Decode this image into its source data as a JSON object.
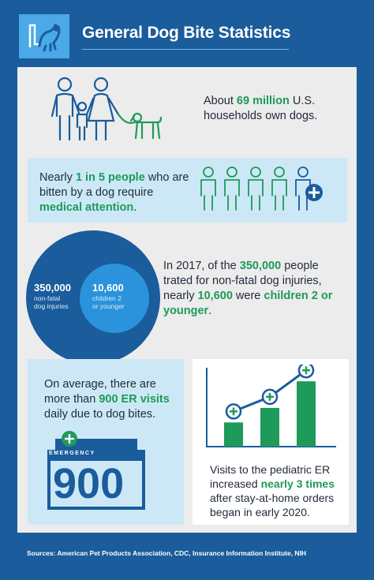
{
  "header": {
    "title": "General Dog Bite Statistics",
    "logo_icon": "dog-logo-icon"
  },
  "stat1": {
    "prefix": "About ",
    "highlight": "69 million",
    "suffix": " U.S. households own dogs."
  },
  "stat2": {
    "prefix": "Nearly ",
    "highlight1": "1 in 5 people",
    "middle": " who are bitten by a dog require ",
    "highlight2": "medical attention",
    "suffix": "."
  },
  "circles": {
    "big_number": "350,000",
    "big_label_1": "non-fatal",
    "big_label_2": "dog injuries",
    "small_number": "10,600",
    "small_label_1": "children 2",
    "small_label_2": "or younger"
  },
  "stat3": {
    "p1": "In 2017, of the ",
    "h1": "350,000",
    "p2": " people trated for non-fatal dog injuries, nearly ",
    "h2": "10,600",
    "p3": " were ",
    "h3": "children 2 or younger",
    "p4": "."
  },
  "stat4": {
    "p1": "On average, there are more than ",
    "h1": "900 ER visits",
    "p2": " daily due to dog bites."
  },
  "er_sign": {
    "label": "EMERGENCY",
    "number": "900"
  },
  "stat5": {
    "p1": "Visits to the pediatric ER increased ",
    "h1": "nearly 3 times",
    "p2": " after stay-at-home orders began in early 2020."
  },
  "footer": {
    "sources": "Sources: American Pet Products Association, CDC, Insurance Information Institute, NIH"
  },
  "colors": {
    "navy": "#1a5c9c",
    "light_blue": "#2a93dc",
    "green": "#1e9a5a",
    "band": "#cce8f7"
  },
  "chart_data": {
    "type": "bar",
    "categories": [
      "",
      "",
      ""
    ],
    "values": [
      1,
      1.6,
      2.7
    ]
  }
}
